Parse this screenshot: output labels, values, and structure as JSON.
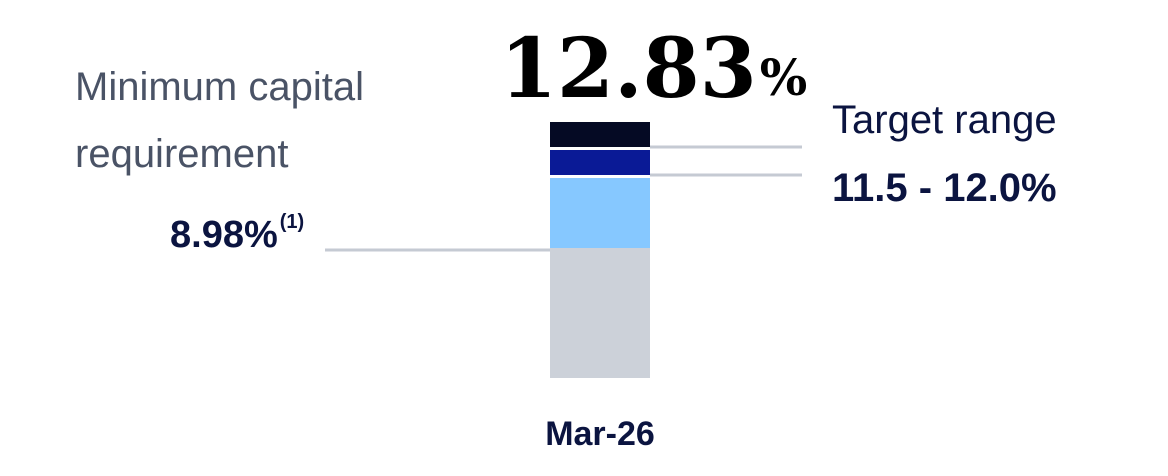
{
  "headline": {
    "value": "12.83",
    "unit": "%"
  },
  "minimum": {
    "label_lines": [
      "Minimum capital",
      "requirement"
    ],
    "value": "8.98%",
    "footnote": "(1)"
  },
  "target": {
    "label": "Target range",
    "value": "11.5 - 12.0%"
  },
  "period": "Mar-26"
}
